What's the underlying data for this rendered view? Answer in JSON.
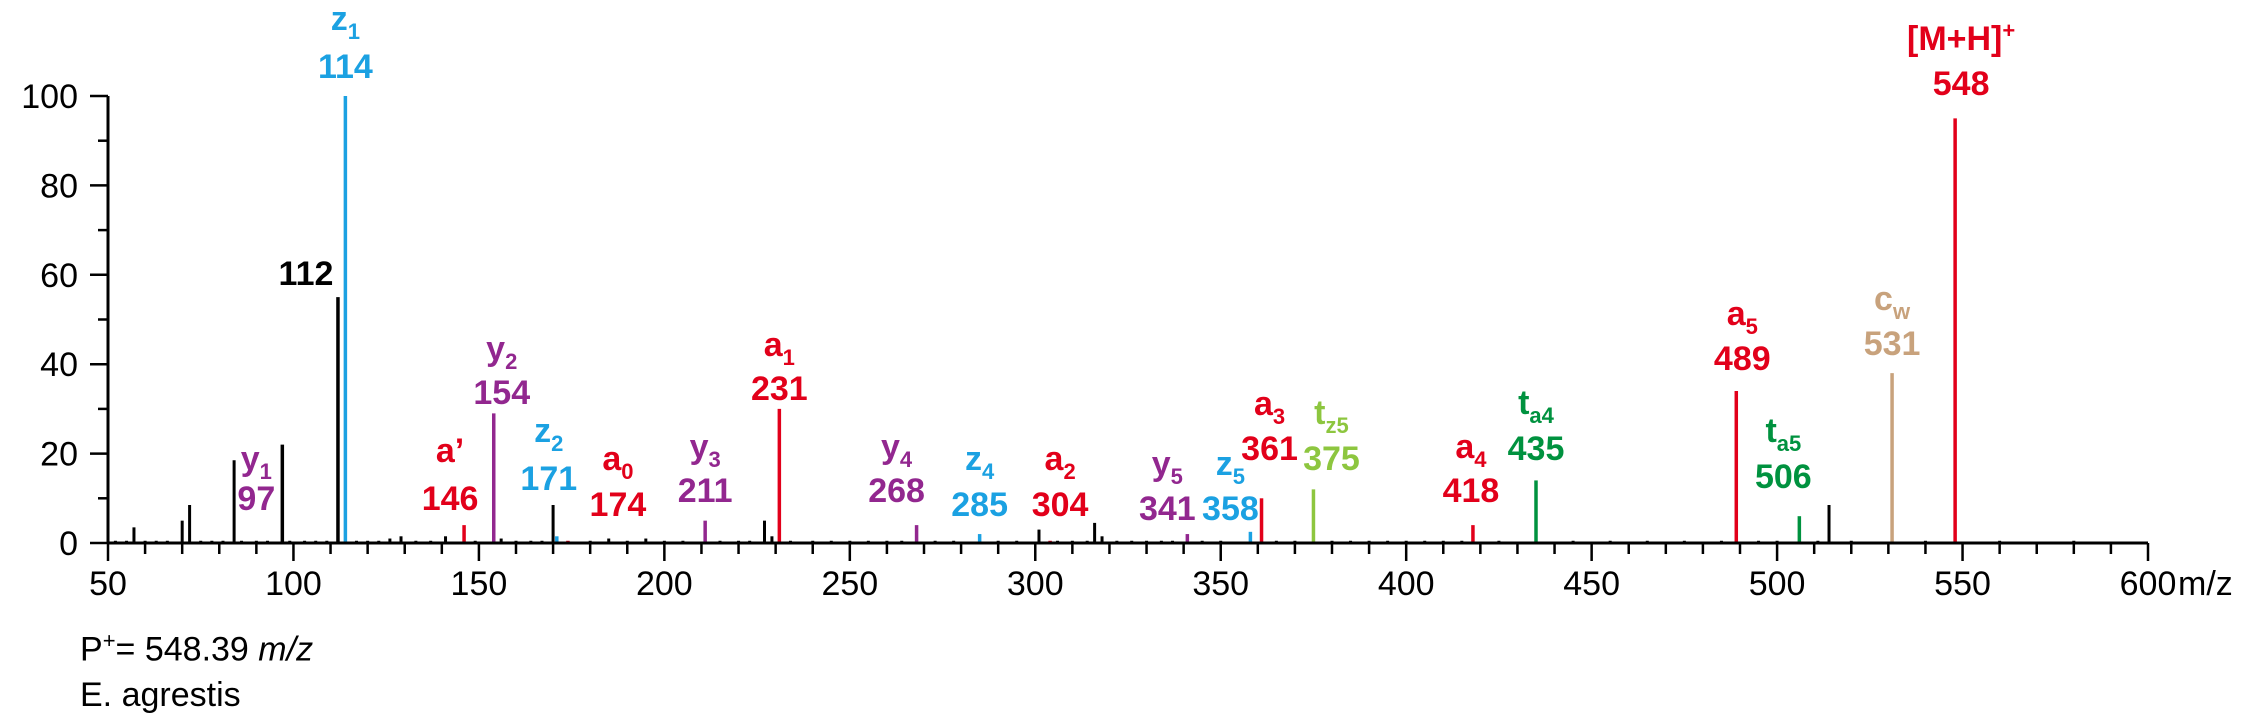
{
  "chart_data": {
    "type": "bar",
    "xlabel_unit": "m/z",
    "xlim": [
      50,
      600
    ],
    "ylim": [
      0,
      100
    ],
    "x_ticks": [
      50,
      100,
      150,
      200,
      250,
      300,
      350,
      400,
      450,
      500,
      550,
      600
    ],
    "y_ticks": [
      0,
      20,
      40,
      60,
      80,
      100
    ],
    "colors": {
      "black": "#000000",
      "red": "#e2001a",
      "purple": "#92278f",
      "blue": "#1ba1e2",
      "lime": "#8dc63f",
      "green": "#00923f",
      "tan": "#c8a27c"
    },
    "labeled_peaks": [
      {
        "mz": 97,
        "intensity": 22,
        "color": "black",
        "label": "97",
        "ion": "y",
        "sub": "1",
        "label_color": "purple"
      },
      {
        "mz": 112,
        "intensity": 55,
        "color": "black",
        "label": "112",
        "label_color": "black"
      },
      {
        "mz": 114,
        "intensity": 100,
        "color": "blue",
        "label": "114",
        "ion": "z",
        "sub": "1",
        "label_color": "blue"
      },
      {
        "mz": 146,
        "intensity": 4,
        "color": "red",
        "label": "146",
        "ion": "a’",
        "sub": "",
        "label_color": "red"
      },
      {
        "mz": 154,
        "intensity": 29,
        "color": "purple",
        "label": "154",
        "ion": "y",
        "sub": "2",
        "label_color": "purple"
      },
      {
        "mz": 171,
        "intensity": 1.5,
        "color": "blue",
        "label": "171",
        "ion": "z",
        "sub": "2",
        "label_color": "blue"
      },
      {
        "mz": 174,
        "intensity": 0.5,
        "color": "red",
        "label": "174",
        "ion": "a",
        "sub": "0",
        "label_color": "red"
      },
      {
        "mz": 211,
        "intensity": 5,
        "color": "purple",
        "label": "211",
        "ion": "y",
        "sub": "3",
        "label_color": "purple"
      },
      {
        "mz": 231,
        "intensity": 30,
        "color": "red",
        "label": "231",
        "ion": "a",
        "sub": "1",
        "label_color": "red"
      },
      {
        "mz": 268,
        "intensity": 4,
        "color": "purple",
        "label": "268",
        "ion": "y",
        "sub": "4",
        "label_color": "purple"
      },
      {
        "mz": 285,
        "intensity": 2,
        "color": "blue",
        "label": "285",
        "ion": "z",
        "sub": "4",
        "label_color": "blue"
      },
      {
        "mz": 304,
        "intensity": 0.5,
        "color": "red",
        "label": "304",
        "ion": "a",
        "sub": "2",
        "label_color": "red"
      },
      {
        "mz": 341,
        "intensity": 2,
        "color": "purple",
        "label": "341",
        "ion": "y",
        "sub": "5",
        "label_color": "purple"
      },
      {
        "mz": 358,
        "intensity": 2.5,
        "color": "blue",
        "label": "358",
        "ion": "z",
        "sub": "5",
        "label_color": "blue"
      },
      {
        "mz": 361,
        "intensity": 10,
        "color": "red",
        "label": "361",
        "ion": "a",
        "sub": "3",
        "label_color": "red"
      },
      {
        "mz": 375,
        "intensity": 12,
        "color": "lime",
        "label": "375",
        "ion": "t",
        "sub": "z5",
        "label_color": "lime"
      },
      {
        "mz": 418,
        "intensity": 4,
        "color": "red",
        "label": "418",
        "ion": "a",
        "sub": "4",
        "label_color": "red"
      },
      {
        "mz": 435,
        "intensity": 14,
        "color": "green",
        "label": "435",
        "ion": "t",
        "sub": "a4",
        "label_color": "green"
      },
      {
        "mz": 489,
        "intensity": 34,
        "color": "red",
        "label": "489",
        "ion": "a",
        "sub": "5",
        "label_color": "red"
      },
      {
        "mz": 506,
        "intensity": 6,
        "color": "green",
        "label": "506",
        "ion": "t",
        "sub": "a5",
        "label_color": "green"
      },
      {
        "mz": 531,
        "intensity": 38,
        "color": "tan",
        "label": "531",
        "ion": "c",
        "sub": "w",
        "label_color": "tan"
      },
      {
        "mz": 548,
        "intensity": 95,
        "color": "red",
        "label": "548",
        "ion": "[M+H]",
        "sup": "+",
        "label_color": "red"
      }
    ],
    "minor_peaks": [
      [
        52,
        0.5
      ],
      [
        55,
        0.5
      ],
      [
        57,
        3.5
      ],
      [
        60,
        0.5
      ],
      [
        63,
        0.5
      ],
      [
        66,
        0.5
      ],
      [
        70,
        5
      ],
      [
        72,
        8.5
      ],
      [
        75,
        0.5
      ],
      [
        78,
        0.5
      ],
      [
        81,
        0.5
      ],
      [
        84,
        18.5
      ],
      [
        86,
        0.5
      ],
      [
        90,
        0.5
      ],
      [
        93,
        0.5
      ],
      [
        99,
        0.5
      ],
      [
        103,
        0.5
      ],
      [
        106,
        0.5
      ],
      [
        109,
        0.5
      ],
      [
        117,
        0.5
      ],
      [
        120,
        0.5
      ],
      [
        123,
        0.5
      ],
      [
        126,
        1
      ],
      [
        129,
        1.5
      ],
      [
        133,
        0.5
      ],
      [
        137,
        0.5
      ],
      [
        141,
        1.5
      ],
      [
        149,
        0.5
      ],
      [
        156,
        1
      ],
      [
        160,
        0.5
      ],
      [
        164,
        0.5
      ],
      [
        167,
        0.5
      ],
      [
        170,
        8.5
      ],
      [
        180,
        0.5
      ],
      [
        185,
        1
      ],
      [
        190,
        0.5
      ],
      [
        195,
        1
      ],
      [
        200,
        0.5
      ],
      [
        205,
        0.5
      ],
      [
        215,
        0.5
      ],
      [
        220,
        0.5
      ],
      [
        223,
        0.5
      ],
      [
        227,
        5
      ],
      [
        229,
        1.5
      ],
      [
        234,
        0.5
      ],
      [
        240,
        0.5
      ],
      [
        245,
        0.5
      ],
      [
        250,
        0.5
      ],
      [
        255,
        0.5
      ],
      [
        260,
        0.5
      ],
      [
        264,
        0.5
      ],
      [
        273,
        0.5
      ],
      [
        278,
        0.5
      ],
      [
        290,
        0.5
      ],
      [
        295,
        0.5
      ],
      [
        301,
        3
      ],
      [
        306,
        0.5
      ],
      [
        310,
        0.5
      ],
      [
        314,
        0.5
      ],
      [
        316,
        4.5
      ],
      [
        318,
        1.5
      ],
      [
        322,
        0.5
      ],
      [
        326,
        0.5
      ],
      [
        330,
        0.5
      ],
      [
        334,
        0.5
      ],
      [
        337,
        0.5
      ],
      [
        345,
        0.5
      ],
      [
        350,
        0.5
      ],
      [
        365,
        0.5
      ],
      [
        370,
        0.5
      ],
      [
        380,
        0.5
      ],
      [
        385,
        0.5
      ],
      [
        390,
        0.5
      ],
      [
        395,
        0.5
      ],
      [
        400,
        0.5
      ],
      [
        405,
        0.5
      ],
      [
        410,
        0.5
      ],
      [
        415,
        0.5
      ],
      [
        425,
        0.5
      ],
      [
        445,
        0.5
      ],
      [
        455,
        0.5
      ],
      [
        465,
        0.5
      ],
      [
        475,
        0.5
      ],
      [
        485,
        0.5
      ],
      [
        495,
        0.5
      ],
      [
        500,
        0.5
      ],
      [
        511,
        0.5
      ],
      [
        514,
        8.5
      ],
      [
        520,
        0.5
      ],
      [
        540,
        0.5
      ],
      [
        560,
        0.5
      ],
      [
        580,
        0.5
      ]
    ]
  },
  "notes": {
    "precursor_prefix": "P",
    "precursor_sup": "+",
    "precursor_value": "= 548.39 ",
    "precursor_unit": "m/z",
    "species": "E. agrestis"
  }
}
